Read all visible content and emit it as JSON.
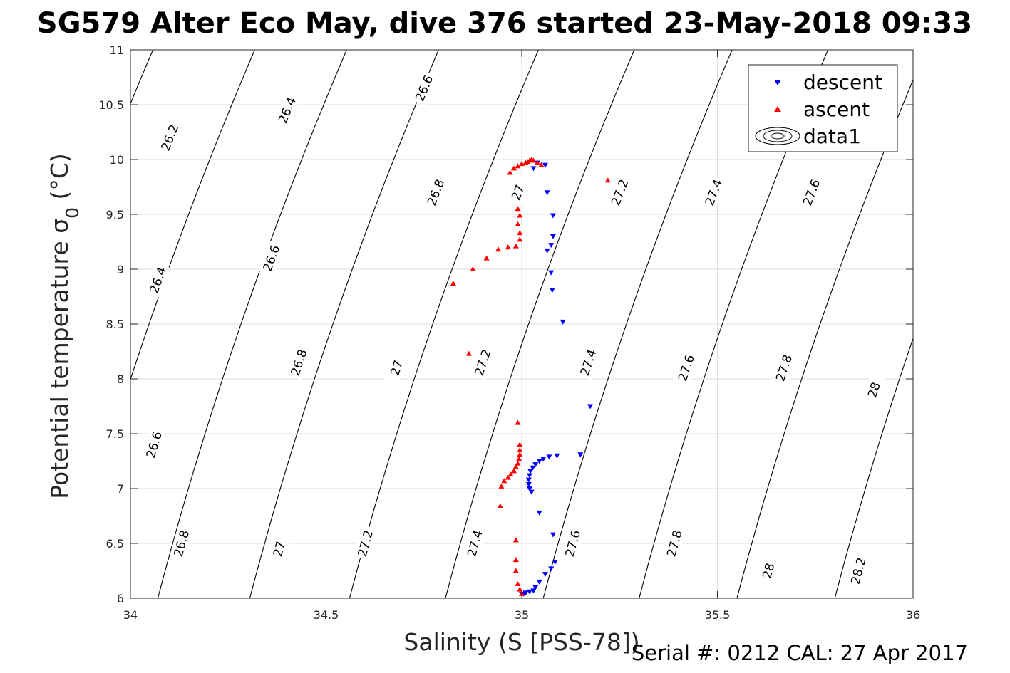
{
  "chart_data": {
    "type": "scatter",
    "title": "SG579 Alter Eco May, dive 376 started 23-May-2018 09:33",
    "xlabel": "Salinity (S [PSS-78])",
    "ylabel_main": "Potential temperature σ",
    "ylabel_sub": "0",
    "ylabel_unit": " (°C)",
    "footer": "Serial #: 0212  CAL: 27 Apr 2017",
    "xlim": [
      34,
      36
    ],
    "ylim": [
      6,
      11
    ],
    "xticks": [
      34,
      34.5,
      35,
      35.5,
      36
    ],
    "yticks": [
      6,
      6.5,
      7,
      7.5,
      8,
      8.5,
      9,
      9.5,
      10,
      10.5,
      11
    ],
    "xtick_labels": [
      "34",
      "34.5",
      "35",
      "35.5",
      "36"
    ],
    "ytick_labels": [
      "6",
      "6.5",
      "7",
      "7.5",
      "8",
      "8.5",
      "9",
      "9.5",
      "10",
      "10.5",
      "11"
    ],
    "grid": true,
    "legend_position": "top-right",
    "legend": [
      "descent",
      "ascent",
      "data1"
    ],
    "colors": {
      "descent": "#0000ff",
      "ascent": "#ff0000",
      "contour": "#000000",
      "grid": "#dcdcdc"
    },
    "contours": [
      {
        "level": "26.2",
        "x6": 33.575,
        "labels": [
          [
            34.1,
            10.2
          ]
        ]
      },
      {
        "level": "26.4",
        "x6": 33.835,
        "labels": [
          [
            34.4,
            10.45
          ],
          [
            34.07,
            8.9
          ]
        ]
      },
      {
        "level": "26.6",
        "x6": 34.07,
        "labels": [
          [
            34.75,
            10.65
          ],
          [
            34.36,
            9.1
          ],
          [
            34.06,
            7.4
          ]
        ]
      },
      {
        "level": "26.8",
        "x6": 34.305,
        "labels": [
          [
            34.78,
            9.7
          ],
          [
            34.43,
            8.15
          ],
          [
            34.13,
            6.5
          ]
        ]
      },
      {
        "level": "27",
        "x6": 34.56,
        "labels": [
          [
            34.99,
            9.7
          ],
          [
            34.68,
            8.1
          ],
          [
            34.38,
            6.45
          ]
        ]
      },
      {
        "level": "27.2",
        "x6": 34.805,
        "labels": [
          [
            35.25,
            9.7
          ],
          [
            34.9,
            8.15
          ],
          [
            34.6,
            6.5
          ]
        ]
      },
      {
        "level": "27.4",
        "x6": 35.055,
        "labels": [
          [
            35.49,
            9.7
          ],
          [
            35.17,
            8.15
          ],
          [
            34.88,
            6.5
          ]
        ]
      },
      {
        "level": "27.6",
        "x6": 35.3,
        "labels": [
          [
            35.74,
            9.7
          ],
          [
            35.42,
            8.1
          ],
          [
            35.13,
            6.5
          ]
        ]
      },
      {
        "level": "27.8",
        "x6": 35.55,
        "labels": [
          [
            35.67,
            8.1
          ],
          [
            35.39,
            6.5
          ]
        ]
      },
      {
        "level": "28",
        "x6": 35.8,
        "labels": [
          [
            35.9,
            7.9
          ],
          [
            35.63,
            6.25
          ]
        ]
      },
      {
        "level": "28.2",
        "x6": 36.05,
        "labels": [
          [
            35.86,
            6.25
          ]
        ]
      }
    ],
    "series": [
      {
        "name": "descent",
        "marker": "triangle-down",
        "points": [
          [
            35.04,
            9.97
          ],
          [
            35.03,
            9.92
          ],
          [
            35.06,
            9.95
          ],
          [
            35.065,
            9.7
          ],
          [
            35.08,
            9.49
          ],
          [
            35.08,
            9.3
          ],
          [
            35.075,
            9.22
          ],
          [
            35.065,
            9.17
          ],
          [
            35.075,
            8.97
          ],
          [
            35.078,
            8.81
          ],
          [
            35.105,
            8.52
          ],
          [
            35.175,
            7.75
          ],
          [
            35.15,
            7.31
          ],
          [
            35.09,
            7.3
          ],
          [
            35.07,
            7.29
          ],
          [
            35.055,
            7.27
          ],
          [
            35.045,
            7.25
          ],
          [
            35.035,
            7.22
          ],
          [
            35.028,
            7.19
          ],
          [
            35.022,
            7.16
          ],
          [
            35.02,
            7.12
          ],
          [
            35.018,
            7.08
          ],
          [
            35.018,
            7.04
          ],
          [
            35.02,
            7.0
          ],
          [
            35.025,
            6.97
          ],
          [
            35.045,
            6.78
          ],
          [
            35.08,
            6.58
          ],
          [
            35.085,
            6.33
          ],
          [
            35.075,
            6.27
          ],
          [
            35.06,
            6.22
          ],
          [
            35.045,
            6.15
          ],
          [
            35.035,
            6.1
          ],
          [
            35.03,
            6.07
          ],
          [
            35.02,
            6.06
          ],
          [
            35.01,
            6.05
          ],
          [
            35.005,
            6.04
          ],
          [
            35.0,
            6.04
          ]
        ]
      },
      {
        "name": "ascent",
        "marker": "triangle-up",
        "points": [
          [
            35.05,
            9.95
          ],
          [
            35.04,
            9.97
          ],
          [
            35.03,
            9.99
          ],
          [
            35.025,
            10.0
          ],
          [
            35.02,
            9.99
          ],
          [
            35.015,
            9.98
          ],
          [
            35.01,
            9.97
          ],
          [
            35.0,
            9.96
          ],
          [
            34.99,
            9.94
          ],
          [
            34.98,
            9.92
          ],
          [
            34.97,
            9.88
          ],
          [
            34.99,
            9.55
          ],
          [
            34.995,
            9.49
          ],
          [
            34.99,
            9.41
          ],
          [
            34.995,
            9.33
          ],
          [
            34.995,
            9.27
          ],
          [
            34.985,
            9.21
          ],
          [
            34.965,
            9.2
          ],
          [
            34.94,
            9.18
          ],
          [
            34.91,
            9.1
          ],
          [
            34.875,
            9.0
          ],
          [
            34.825,
            8.87
          ],
          [
            34.865,
            8.23
          ],
          [
            35.22,
            9.81
          ],
          [
            34.99,
            7.6
          ],
          [
            34.995,
            7.4
          ],
          [
            34.995,
            7.35
          ],
          [
            34.995,
            7.31
          ],
          [
            34.993,
            7.27
          ],
          [
            34.99,
            7.23
          ],
          [
            34.985,
            7.2
          ],
          [
            34.98,
            7.16
          ],
          [
            34.972,
            7.13
          ],
          [
            34.965,
            7.1
          ],
          [
            34.955,
            7.07
          ],
          [
            34.948,
            7.02
          ],
          [
            34.945,
            6.84
          ],
          [
            34.985,
            6.53
          ],
          [
            34.985,
            6.35
          ],
          [
            34.985,
            6.25
          ],
          [
            34.99,
            6.13
          ],
          [
            34.995,
            6.08
          ],
          [
            35.0,
            6.04
          ]
        ]
      }
    ]
  }
}
